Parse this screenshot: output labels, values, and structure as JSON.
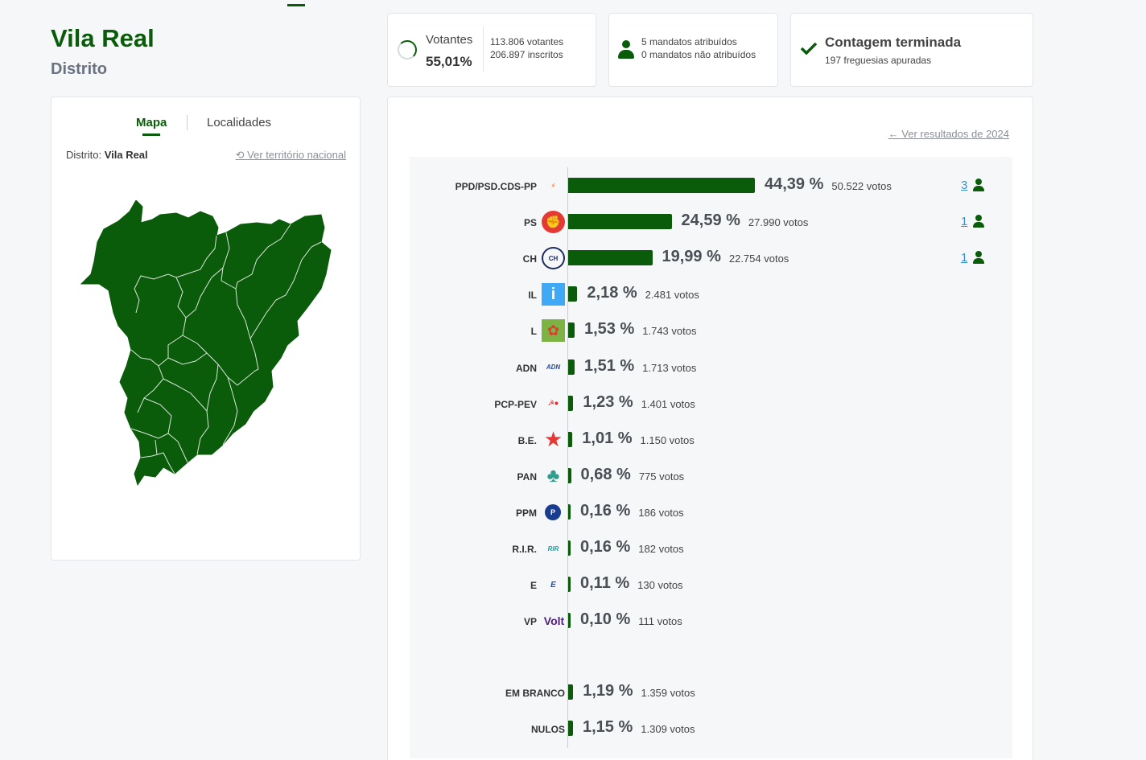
{
  "header": {
    "title": "Vila Real",
    "subtitle": "Distrito"
  },
  "stats": {
    "votantes_label": "Votantes",
    "votantes_pct": "55,01%",
    "votantes_count": "113.806 votantes",
    "inscritos_count": "206.897 inscritos",
    "mandatos_atribuidos": "5 mandatos atribuídos",
    "mandatos_nao_atribuidos": "0 mandatos não atribuídos",
    "contagem_title": "Contagem terminada",
    "freguesias": "197 freguesias apuradas"
  },
  "left_panel": {
    "tabs": [
      {
        "label": "Mapa",
        "active": true
      },
      {
        "label": "Localidades",
        "active": false
      }
    ],
    "distrito_prefix": "Distrito:",
    "distrito_value": "Vila Real",
    "national_link": "Ver território nacional"
  },
  "results_panel": {
    "previous_link": "Ver resultados de 2024",
    "parties": [
      {
        "name": "PPD/PSD.CDS-PP",
        "pct": 44.39,
        "pct_label": "44,39 %",
        "votes_label": "50.522 votos",
        "seats": "3",
        "logo": "psd-cds-logo",
        "logo_color": "#f26522"
      },
      {
        "name": "PS",
        "pct": 24.59,
        "pct_label": "24,59 %",
        "votes_label": "27.990 votos",
        "seats": "1",
        "logo": "ps-fist-logo",
        "logo_color": "#e53935"
      },
      {
        "name": "CH",
        "pct": 19.99,
        "pct_label": "19,99 %",
        "votes_label": "22.754 votos",
        "seats": "1",
        "logo": "chega-logo",
        "logo_color": "#1d2a5c"
      },
      {
        "name": "IL",
        "pct": 2.18,
        "pct_label": "2,18 %",
        "votes_label": "2.481 votos",
        "logo": "il-logo",
        "logo_color": "#3fa9f5"
      },
      {
        "name": "L",
        "pct": 1.53,
        "pct_label": "1,53 %",
        "votes_label": "1.743 votos",
        "logo": "livre-poppy-logo",
        "logo_color": "#e53935"
      },
      {
        "name": "ADN",
        "pct": 1.51,
        "pct_label": "1,51 %",
        "votes_label": "1.713 votos",
        "logo": "adn-logo",
        "logo_color": "#1f4fa8"
      },
      {
        "name": "PCP-PEV",
        "pct": 1.23,
        "pct_label": "1,23 %",
        "votes_label": "1.401 votos",
        "logo": "pcp-pev-logo",
        "logo_color": "#d32f2f"
      },
      {
        "name": "B.E.",
        "pct": 1.01,
        "pct_label": "1,01 %",
        "votes_label": "1.150 votos",
        "logo": "be-star-logo",
        "logo_color": "#e53935"
      },
      {
        "name": "PAN",
        "pct": 0.68,
        "pct_label": "0,68 %",
        "votes_label": "775 votos",
        "logo": "pan-tree-logo",
        "logo_color": "#2e9d8f"
      },
      {
        "name": "PPM",
        "pct": 0.16,
        "pct_label": "0,16 %",
        "votes_label": "186 votos",
        "logo": "ppm-logo",
        "logo_color": "#1a3d8f"
      },
      {
        "name": "R.I.R.",
        "pct": 0.16,
        "pct_label": "0,16 %",
        "votes_label": "182 votos",
        "logo": "rir-logo",
        "logo_color": "#1aa3a3"
      },
      {
        "name": "E",
        "pct": 0.11,
        "pct_label": "0,11 %",
        "votes_label": "130 votos",
        "logo": "ergue-te-logo",
        "logo_color": "#1f4fa8"
      },
      {
        "name": "VP",
        "pct": 0.1,
        "pct_label": "0,10 %",
        "votes_label": "111 votos",
        "logo": "volt-logo",
        "logo_color": "#502379"
      }
    ],
    "blank": {
      "name": "EM BRANCO",
      "pct": 1.19,
      "pct_label": "1,19 %",
      "votes_label": "1.359 votos"
    },
    "null": {
      "name": "NULOS",
      "pct": 1.15,
      "pct_label": "1,15 %",
      "votes_label": "1.309 votos"
    }
  },
  "colors": {
    "accent": "#0a5c0a",
    "link": "#3a8fd1",
    "muted": "#8a8f96"
  }
}
